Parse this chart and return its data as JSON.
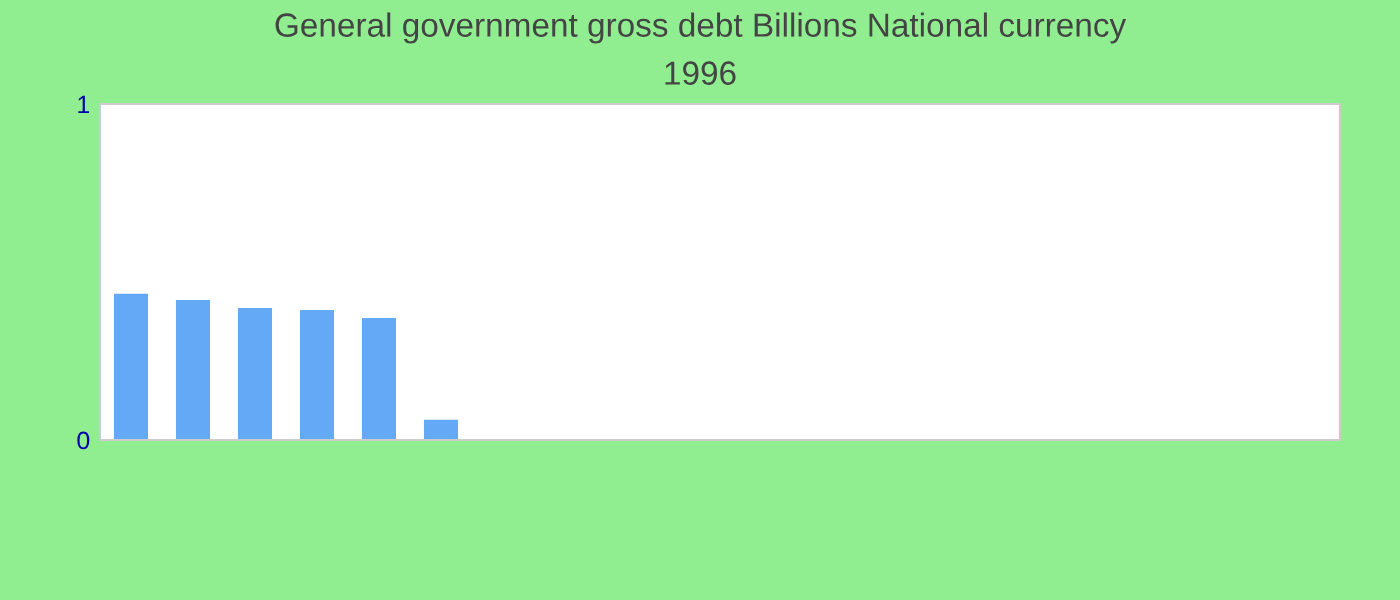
{
  "chart_data": {
    "type": "bar",
    "title": "General government gross debt Billions National currency",
    "subtitle": "1996",
    "categories": [
      null,
      null,
      null,
      null,
      null,
      null,
      null,
      null,
      null,
      null,
      null,
      null,
      null,
      null,
      null,
      null,
      null,
      null,
      null,
      null
    ],
    "values": [
      0.435,
      0.417,
      0.393,
      0.387,
      0.363,
      0.06,
      0,
      0,
      0,
      0,
      0,
      0,
      0,
      0,
      0,
      0,
      0,
      0,
      0,
      0
    ],
    "color": "#64a9f5",
    "ylim": [
      0,
      1
    ],
    "yticks": [
      0,
      1
    ],
    "grid": false,
    "legend": false
  }
}
